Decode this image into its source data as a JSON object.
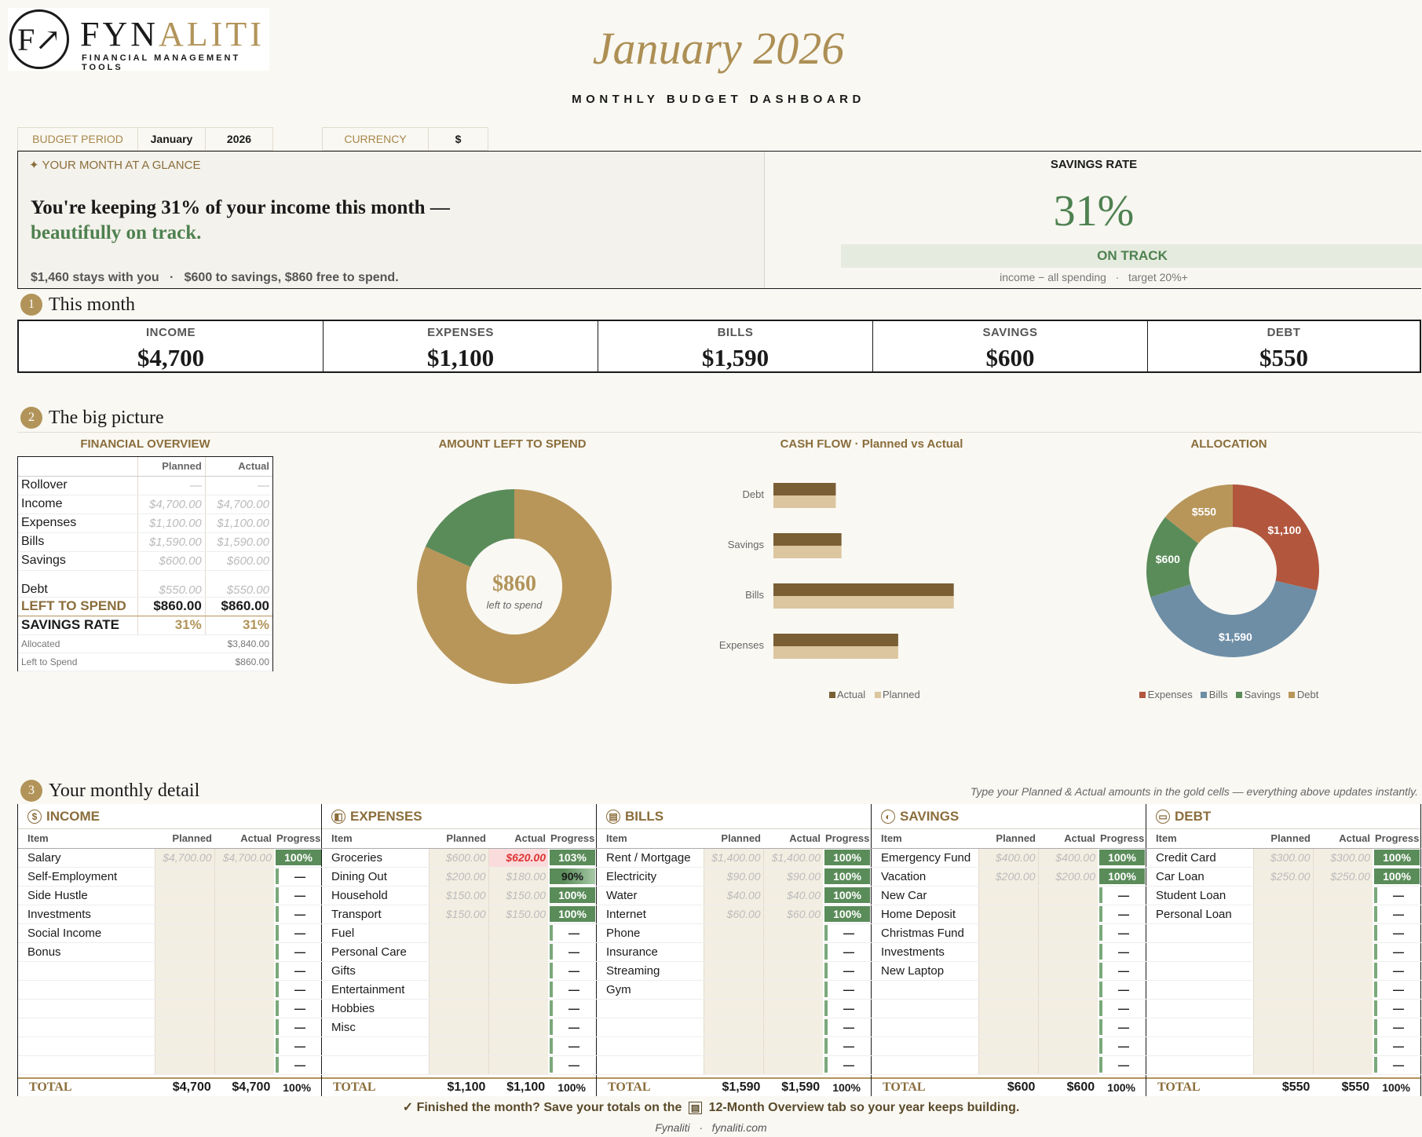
{
  "brand": {
    "name_main": "FYN",
    "name_accent": "ALITI",
    "tagline": "FINANCIAL MANAGEMENT TOOLS"
  },
  "header": {
    "title": "January 2026",
    "subtitle": "MONTHLY BUDGET DASHBOARD"
  },
  "settings": {
    "budget_period_label": "BUDGET PERIOD",
    "month": "January",
    "year": "2026",
    "currency_label": "CURRENCY",
    "currency": "$"
  },
  "glance": {
    "label": "✦ YOUR MONTH AT A GLANCE",
    "headline": "You're keeping 31% of your income this month —",
    "headline_accent": "beautifully on track.",
    "summary": "$1,460 stays with you   ·   $600 to savings, $860 free to spend.",
    "savings_rate_label": "SAVINGS RATE",
    "savings_rate": "31%",
    "status": "ON TRACK",
    "note": "income − all spending   ·   target 20%+"
  },
  "sections": {
    "s1_num": "1",
    "s1": "This month",
    "s2_num": "2",
    "s2": "The big picture",
    "s3_num": "3",
    "s3": "Your monthly detail",
    "s3_hint": "Type your Planned & Actual amounts in the gold cells — everything above updates instantly."
  },
  "kpis": [
    {
      "label": "INCOME",
      "value": "$4,700"
    },
    {
      "label": "EXPENSES",
      "value": "$1,100"
    },
    {
      "label": "BILLS",
      "value": "$1,590"
    },
    {
      "label": "SAVINGS",
      "value": "$600"
    },
    {
      "label": "DEBT",
      "value": "$550"
    }
  ],
  "overview": {
    "title": "FINANCIAL OVERVIEW",
    "col_planned": "Planned",
    "col_actual": "Actual",
    "rows": [
      {
        "label": "Rollover",
        "planned": "—",
        "actual": "—"
      },
      {
        "label": "Income",
        "planned": "$4,700.00",
        "actual": "$4,700.00"
      },
      {
        "label": "Expenses",
        "planned": "$1,100.00",
        "actual": "$1,100.00"
      },
      {
        "label": "Bills",
        "planned": "$1,590.00",
        "actual": "$1,590.00"
      },
      {
        "label": "Savings",
        "planned": "$600.00",
        "actual": "$600.00"
      },
      {
        "label": "Debt",
        "planned": "$550.00",
        "actual": "$550.00"
      }
    ],
    "left_label": "LEFT TO SPEND",
    "left_planned": "$860.00",
    "left_actual": "$860.00",
    "rate_label": "SAVINGS RATE",
    "rate_planned": "31%",
    "rate_actual": "31%",
    "allocated_label": "Allocated",
    "allocated": "$3,840.00",
    "lts_label": "Left to Spend",
    "lts": "$860.00"
  },
  "chart_data": [
    {
      "type": "pie",
      "title": "AMOUNT LEFT TO SPEND",
      "center_value": "$860",
      "center_label": "left to spend",
      "labels": [
        "Left to spend",
        "Allocated"
      ],
      "values": [
        860,
        3840
      ],
      "colors": [
        "#5a8c5a",
        "#b8965a"
      ]
    },
    {
      "type": "bar",
      "title": "CASH FLOW  ·  Planned vs Actual",
      "orientation": "horizontal",
      "categories": [
        "Debt",
        "Savings",
        "Bills",
        "Expenses"
      ],
      "series": [
        {
          "name": "Actual",
          "values": [
            550,
            600,
            1590,
            1100
          ],
          "color": "#7a5e34"
        },
        {
          "name": "Planned",
          "values": [
            550,
            600,
            1590,
            1100
          ],
          "color": "#dcc69f"
        }
      ],
      "xlim": [
        0,
        1800
      ]
    },
    {
      "type": "pie",
      "title": "ALLOCATION",
      "labels": [
        "Expenses",
        "Bills",
        "Savings",
        "Debt"
      ],
      "values": [
        1100,
        1590,
        600,
        550
      ],
      "value_labels": [
        "$1,100",
        "$1,590",
        "$600",
        "$550"
      ],
      "colors": [
        "#b2563e",
        "#6e8ea6",
        "#5a8c5a",
        "#b8965a"
      ]
    }
  ],
  "detail": {
    "col_item": "Item",
    "col_planned": "Planned",
    "col_actual": "Actual",
    "col_progress": "Progress",
    "total_label": "TOTAL",
    "empty_progress": "—",
    "income": {
      "title": "INCOME",
      "icon": "$",
      "rows": [
        [
          "Salary",
          "$4,700.00",
          "$4,700.00",
          "100%"
        ],
        [
          "Self-Employment",
          "",
          "",
          ""
        ],
        [
          "Side Hustle",
          "",
          "",
          ""
        ],
        [
          "Investments",
          "",
          "",
          ""
        ],
        [
          "Social Income",
          "",
          "",
          ""
        ],
        [
          "Bonus",
          "",
          "",
          ""
        ],
        [
          "",
          "",
          "",
          ""
        ],
        [
          "",
          "",
          "",
          ""
        ],
        [
          "",
          "",
          "",
          ""
        ],
        [
          "",
          "",
          "",
          ""
        ],
        [
          "",
          "",
          "",
          ""
        ],
        [
          "",
          "",
          "",
          ""
        ]
      ],
      "total_planned": "$4,700",
      "total_actual": "$4,700",
      "total_pct": "100%"
    },
    "expenses": {
      "title": "EXPENSES",
      "icon": "◧",
      "rows": [
        [
          "Groceries",
          "$600.00",
          "$620.00",
          "103%"
        ],
        [
          "Dining Out",
          "$200.00",
          "$180.00",
          "90%"
        ],
        [
          "Household",
          "$150.00",
          "$150.00",
          "100%"
        ],
        [
          "Transport",
          "$150.00",
          "$150.00",
          "100%"
        ],
        [
          "Fuel",
          "",
          "",
          ""
        ],
        [
          "Personal Care",
          "",
          "",
          ""
        ],
        [
          "Gifts",
          "",
          "",
          ""
        ],
        [
          "Entertainment",
          "",
          "",
          ""
        ],
        [
          "Hobbies",
          "",
          "",
          ""
        ],
        [
          "Misc",
          "",
          "",
          ""
        ],
        [
          "",
          "",
          "",
          ""
        ],
        [
          "",
          "",
          "",
          ""
        ]
      ],
      "total_planned": "$1,100",
      "total_actual": "$1,100",
      "total_pct": "100%"
    },
    "bills": {
      "title": "BILLS",
      "icon": "▤",
      "rows": [
        [
          "Rent / Mortgage",
          "$1,400.00",
          "$1,400.00",
          "100%"
        ],
        [
          "Electricity",
          "$90.00",
          "$90.00",
          "100%"
        ],
        [
          "Water",
          "$40.00",
          "$40.00",
          "100%"
        ],
        [
          "Internet",
          "$60.00",
          "$60.00",
          "100%"
        ],
        [
          "Phone",
          "",
          "",
          ""
        ],
        [
          "Insurance",
          "",
          "",
          ""
        ],
        [
          "Streaming",
          "",
          "",
          ""
        ],
        [
          "Gym",
          "",
          "",
          ""
        ],
        [
          "",
          "",
          "",
          ""
        ],
        [
          "",
          "",
          "",
          ""
        ],
        [
          "",
          "",
          "",
          ""
        ],
        [
          "",
          "",
          "",
          ""
        ]
      ],
      "total_planned": "$1,590",
      "total_actual": "$1,590",
      "total_pct": "100%"
    },
    "savings": {
      "title": "SAVINGS",
      "icon": "◐",
      "rows": [
        [
          "Emergency Fund",
          "$400.00",
          "$400.00",
          "100%"
        ],
        [
          "Vacation",
          "$200.00",
          "$200.00",
          "100%"
        ],
        [
          "New Car",
          "",
          "",
          ""
        ],
        [
          "Home Deposit",
          "",
          "",
          ""
        ],
        [
          "Christmas Fund",
          "",
          "",
          ""
        ],
        [
          "Investments",
          "",
          "",
          ""
        ],
        [
          "New Laptop",
          "",
          "",
          ""
        ],
        [
          "",
          "",
          "",
          ""
        ],
        [
          "",
          "",
          "",
          ""
        ],
        [
          "",
          "",
          "",
          ""
        ],
        [
          "",
          "",
          "",
          ""
        ],
        [
          "",
          "",
          "",
          ""
        ]
      ],
      "total_planned": "$600",
      "total_actual": "$600",
      "total_pct": "100%"
    },
    "debt": {
      "title": "DEBT",
      "icon": "▭",
      "rows": [
        [
          "Credit Card",
          "$300.00",
          "$300.00",
          "100%"
        ],
        [
          "Car Loan",
          "$250.00",
          "$250.00",
          "100%"
        ],
        [
          "Student Loan",
          "",
          "",
          ""
        ],
        [
          "Personal Loan",
          "",
          "",
          ""
        ],
        [
          "",
          "",
          "",
          ""
        ],
        [
          "",
          "",
          "",
          ""
        ],
        [
          "",
          "",
          "",
          ""
        ],
        [
          "",
          "",
          "",
          ""
        ],
        [
          "",
          "",
          "",
          ""
        ],
        [
          "",
          "",
          "",
          ""
        ],
        [
          "",
          "",
          "",
          ""
        ],
        [
          "",
          "",
          "",
          ""
        ]
      ],
      "total_planned": "$550",
      "total_actual": "$550",
      "total_pct": "100%"
    }
  },
  "footer": {
    "finish_pre": "✓  Finished the month? Save your totals on the",
    "finish_icon": "▤",
    "finish_post": "12-Month Overview tab so your year keeps building.",
    "credit": "Fynaliti   ·   fynaliti.com"
  }
}
